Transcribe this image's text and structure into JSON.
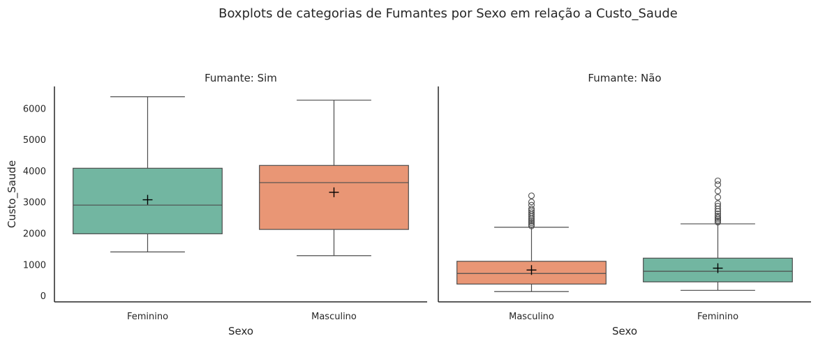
{
  "figure": {
    "title": "Boxplots de categorias de Fumantes por Sexo em relação a Custo_Saude"
  },
  "colors": {
    "Feminino": "#72b6a1",
    "Masculino": "#e99675",
    "box_edge": "#4d4d4d",
    "text": "#262626"
  },
  "chart_data": [
    {
      "type": "box",
      "title": "Fumante: Sim",
      "xlabel": "Sexo",
      "ylabel": "Custo_Saude",
      "ylim": [
        -200,
        6700
      ],
      "yticks": [
        0,
        1000,
        2000,
        3000,
        4000,
        5000,
        6000
      ],
      "categories": [
        "Feminino",
        "Masculino"
      ],
      "boxes": [
        {
          "category": "Feminino",
          "whislo": 1400,
          "q1": 1980,
          "median": 2900,
          "q3": 4080,
          "whishi": 6370,
          "mean": 3070,
          "fliers": []
        },
        {
          "category": "Masculino",
          "whislo": 1280,
          "q1": 2120,
          "median": 3620,
          "q3": 4170,
          "whishi": 6260,
          "mean": 3310,
          "fliers": []
        }
      ]
    },
    {
      "type": "box",
      "title": "Fumante: Não",
      "xlabel": "Sexo",
      "ylabel": "",
      "ylim": [
        -200,
        6700
      ],
      "categories": [
        "Masculino",
        "Feminino"
      ],
      "boxes": [
        {
          "category": "Masculino",
          "whislo": 130,
          "q1": 370,
          "median": 710,
          "q3": 1100,
          "whishi": 2190,
          "mean": 820,
          "fliers": [
            2230,
            2280,
            2330,
            2380,
            2430,
            2480,
            2540,
            2600,
            2660,
            2720,
            2780,
            2900,
            3000,
            3200
          ]
        },
        {
          "category": "Feminino",
          "whislo": 170,
          "q1": 440,
          "median": 780,
          "q3": 1200,
          "whishi": 2300,
          "mean": 880,
          "fliers": [
            2350,
            2400,
            2450,
            2500,
            2550,
            2620,
            2700,
            2780,
            2870,
            2950,
            3150,
            3350,
            3560,
            3680
          ]
        }
      ]
    }
  ]
}
